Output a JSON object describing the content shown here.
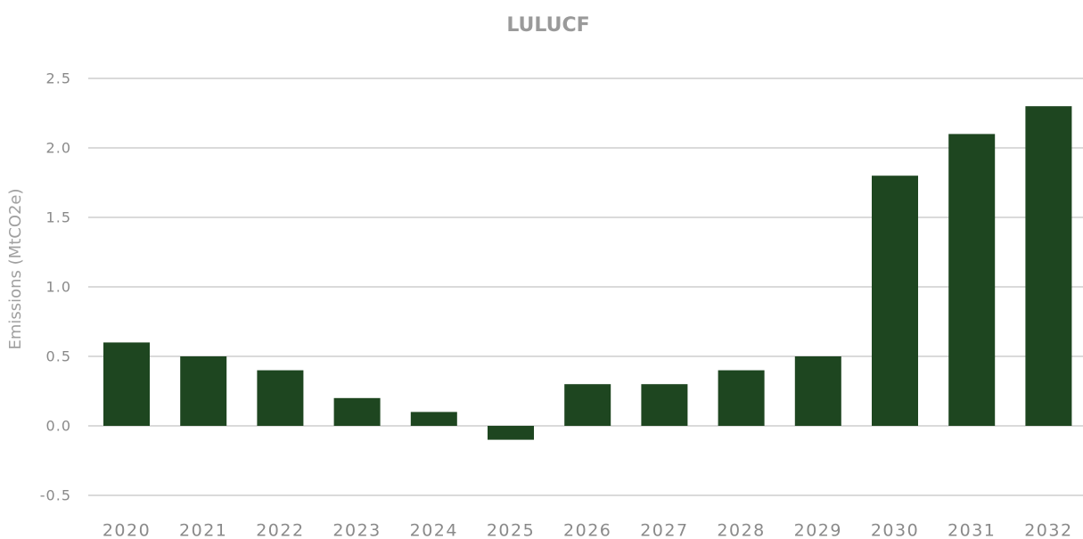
{
  "chart_data": {
    "type": "bar",
    "title": "LULUCF",
    "y_label": "Emissions (MtCO2e)",
    "categories": [
      "2020",
      "2021",
      "2022",
      "2023",
      "2024",
      "2025",
      "2026",
      "2027",
      "2028",
      "2029",
      "2030",
      "2031",
      "2032"
    ],
    "values": [
      0.6,
      0.5,
      0.4,
      0.2,
      0.1,
      -0.1,
      0.3,
      0.3,
      0.4,
      0.5,
      1.8,
      2.1,
      2.3
    ],
    "color": "#1e4620",
    "ylim": [
      -0.5,
      2.5
    ],
    "yticks": [
      -0.5,
      {
        "value": 0,
        "label": "0.0"
      },
      0.5,
      {
        "value": 1,
        "label": "1.0"
      },
      1.5,
      {
        "value": 2,
        "label": "2.0"
      },
      2.5
    ],
    "grid": true
  }
}
